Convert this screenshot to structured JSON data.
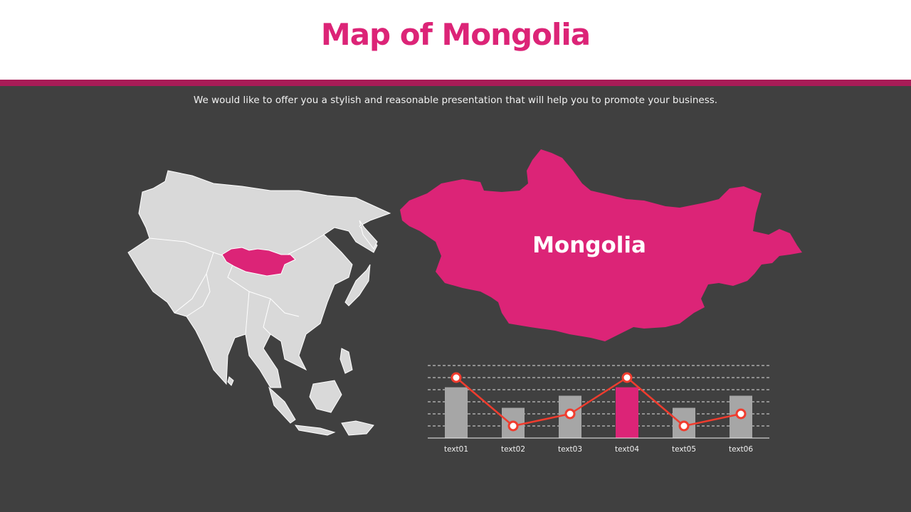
{
  "header": {
    "title": "Map of Mongolia"
  },
  "subtitle": "We would like to offer you a stylish and reasonable presentation that will help you to promote your business.",
  "map": {
    "highlighted_country": "Mongolia",
    "label": "Mongolia",
    "highlight_color": "#dc2477",
    "base_color": "#d9d9d9"
  },
  "chart_data": {
    "type": "bar",
    "categories": [
      "text01",
      "text02",
      "text03",
      "text04",
      "text05",
      "text06"
    ],
    "series": [
      {
        "type": "bar",
        "values": [
          4.2,
          2.5,
          3.5,
          4.2,
          2.5,
          3.5
        ],
        "colors": [
          "#a6a6a6",
          "#a6a6a6",
          "#a6a6a6",
          "#dc2477",
          "#a6a6a6",
          "#a6a6a6"
        ]
      },
      {
        "type": "line",
        "values": [
          5,
          1,
          2,
          5,
          1,
          2
        ],
        "color": "#f03c2e"
      }
    ],
    "ylim": [
      0,
      6
    ],
    "grid": true
  }
}
